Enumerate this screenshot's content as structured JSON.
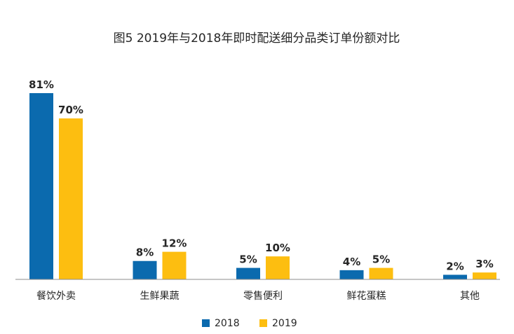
{
  "chart_data": {
    "type": "bar",
    "title": "图5 2019年与2018年即时配送细分品类订单份额对比",
    "xlabel": "",
    "ylabel": "",
    "categories": [
      "餐饮外卖",
      "生鲜果蔬",
      "零售便利",
      "鲜花蛋糕",
      "其他"
    ],
    "series": [
      {
        "name": "2018",
        "values": [
          81,
          8,
          5,
          4,
          2
        ],
        "labels": [
          "81%",
          "8%",
          "5%",
          "4%",
          "2%"
        ],
        "color": "#0B6AAE"
      },
      {
        "name": "2019",
        "values": [
          70,
          12,
          10,
          5,
          3
        ],
        "labels": [
          "70%",
          "12%",
          "10%",
          "5%",
          "3%"
        ],
        "color": "#FDBE10"
      }
    ],
    "ylim": [
      0,
      81
    ],
    "grid": false,
    "legend_position": "bottom-center"
  }
}
